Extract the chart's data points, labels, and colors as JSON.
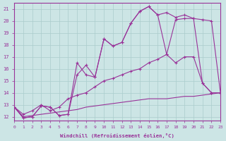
{
  "bg_color": "#cce5e5",
  "grid_color": "#aacccc",
  "line_color": "#993399",
  "xlim": [
    0,
    23
  ],
  "ylim": [
    11.7,
    21.5
  ],
  "xticks": [
    0,
    1,
    2,
    3,
    4,
    5,
    6,
    7,
    8,
    9,
    10,
    11,
    12,
    13,
    14,
    15,
    16,
    17,
    18,
    19,
    20,
    21,
    22,
    23
  ],
  "yticks": [
    12,
    13,
    14,
    15,
    16,
    17,
    18,
    19,
    20,
    21
  ],
  "xlabel": "Windchill (Refroidissement éolien,°C)",
  "line1_x": [
    0,
    1,
    2,
    3,
    4,
    5,
    6,
    7,
    8,
    9,
    10,
    11,
    12,
    13,
    14,
    15,
    16,
    17,
    18,
    19,
    20,
    21,
    22,
    23
  ],
  "line1_y": [
    12.8,
    11.9,
    12.0,
    12.9,
    12.8,
    12.1,
    12.2,
    16.5,
    15.5,
    15.3,
    18.5,
    17.9,
    18.2,
    19.8,
    20.8,
    21.2,
    20.5,
    20.7,
    20.3,
    20.5,
    20.2,
    20.1,
    20.0,
    14.0
  ],
  "line2_x": [
    0,
    1,
    2,
    3,
    4,
    5,
    6,
    7,
    8,
    9,
    10,
    11,
    12,
    13,
    14,
    15,
    16,
    17,
    18,
    19,
    20,
    21,
    22,
    23
  ],
  "line2_y": [
    12.8,
    11.9,
    12.0,
    12.9,
    12.8,
    12.1,
    12.2,
    15.5,
    16.3,
    15.3,
    18.5,
    17.9,
    18.2,
    19.8,
    20.8,
    21.2,
    20.5,
    17.2,
    20.1,
    20.2,
    20.2,
    14.8,
    14.0,
    14.0
  ],
  "line3_x": [
    0,
    1,
    2,
    3,
    4,
    5,
    6,
    7,
    8,
    9,
    10,
    11,
    12,
    13,
    14,
    15,
    16,
    17,
    18,
    19,
    20,
    21,
    22,
    23
  ],
  "line3_y": [
    12.8,
    12.2,
    12.5,
    13.0,
    12.5,
    12.8,
    13.5,
    13.8,
    14.0,
    14.5,
    15.0,
    15.2,
    15.5,
    15.8,
    16.0,
    16.5,
    16.8,
    17.2,
    16.5,
    17.0,
    17.0,
    14.8,
    14.0,
    14.0
  ],
  "line4_x": [
    0,
    1,
    2,
    3,
    4,
    5,
    6,
    7,
    8,
    9,
    10,
    11,
    12,
    13,
    14,
    15,
    16,
    17,
    18,
    19,
    20,
    21,
    22,
    23
  ],
  "line4_y": [
    12.8,
    12.0,
    12.1,
    12.2,
    12.3,
    12.4,
    12.5,
    12.6,
    12.8,
    12.9,
    13.0,
    13.1,
    13.2,
    13.3,
    13.4,
    13.5,
    13.5,
    13.5,
    13.6,
    13.7,
    13.7,
    13.8,
    13.9,
    14.0
  ]
}
